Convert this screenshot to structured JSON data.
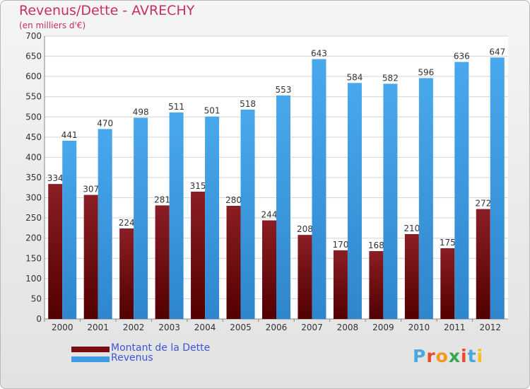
{
  "chart_data": {
    "type": "bar",
    "title": "Revenus/Dette - AVRECHY",
    "subtitle": "(en milliers d'€)",
    "categories": [
      "2000",
      "2001",
      "2002",
      "2003",
      "2004",
      "2005",
      "2006",
      "2007",
      "2008",
      "2009",
      "2010",
      "2011",
      "2012"
    ],
    "series": [
      {
        "name": "Montant de la Dette",
        "color": "#7a0f12",
        "values": [
          334,
          307,
          224,
          281,
          315,
          280,
          244,
          208,
          170,
          168,
          210,
          175,
          272
        ]
      },
      {
        "name": "Revenus",
        "color": "#3d9ce4",
        "values": [
          441,
          470,
          498,
          511,
          501,
          518,
          553,
          643,
          584,
          582,
          596,
          636,
          647
        ]
      }
    ],
    "ylim": [
      0,
      700
    ],
    "yticks": [
      0,
      50,
      100,
      150,
      200,
      250,
      300,
      350,
      400,
      450,
      500,
      550,
      600,
      650,
      700
    ],
    "grid": true,
    "xlabel": "",
    "ylabel": "",
    "legend_position": "bottom-left"
  },
  "logo": {
    "letters": [
      "P",
      "r",
      "o",
      "x",
      "i",
      "t",
      "i"
    ],
    "colors": [
      "#4aa8e0",
      "#e84a2c",
      "#f29a1e",
      "#3aa84a",
      "#e84a2c",
      "#4aa8e0",
      "#f2c31e"
    ]
  }
}
